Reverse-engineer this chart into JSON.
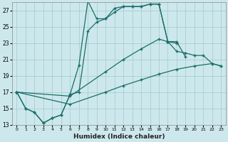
{
  "xlabel": "Humidex (Indice chaleur)",
  "xlim": [
    -0.5,
    23.5
  ],
  "ylim": [
    13,
    28
  ],
  "yticks": [
    13,
    15,
    17,
    19,
    21,
    23,
    25,
    27
  ],
  "xticks": [
    0,
    1,
    2,
    3,
    4,
    5,
    6,
    7,
    8,
    9,
    10,
    11,
    12,
    13,
    14,
    15,
    16,
    17,
    18,
    19,
    20,
    21,
    22,
    23
  ],
  "bg_color": "#cde8ec",
  "grid_color": "#a8cdd2",
  "line_color": "#1a6e6a",
  "lines": [
    {
      "x": [
        0,
        1,
        2,
        3,
        4,
        5,
        6,
        7,
        8,
        9,
        10,
        11,
        12,
        13,
        14,
        15,
        16,
        17,
        18,
        19,
        20,
        21,
        22,
        23
      ],
      "y": [
        17,
        15,
        14.5,
        13.2,
        13.8,
        14.2,
        16.7,
        20.3,
        28.2,
        26.0,
        26.0,
        27.3,
        27.5,
        27.5,
        27.5,
        27.8,
        27.8,
        23.2,
        23.2,
        21.3,
        null,
        null,
        null,
        null
      ]
    },
    {
      "x": [
        0,
        1,
        2,
        3,
        4,
        5,
        6,
        7,
        8,
        9,
        10,
        11,
        12,
        13,
        14,
        15,
        16,
        17,
        18,
        19,
        20,
        21,
        22,
        23
      ],
      "y": [
        17,
        15,
        14.5,
        13.2,
        13.8,
        14.2,
        16.7,
        17.0,
        24.5,
        25.6,
        26.0,
        26.8,
        27.5,
        27.5,
        27.5,
        27.8,
        27.8,
        23.2,
        23.0,
        null,
        null,
        null,
        null,
        null
      ]
    },
    {
      "x": [
        0,
        6,
        10,
        12,
        14,
        16,
        17,
        18,
        19,
        20,
        21,
        22,
        23
      ],
      "y": [
        17,
        16.5,
        19.5,
        21.0,
        22.3,
        23.5,
        23.2,
        22.0,
        21.8,
        21.5,
        21.5,
        20.5,
        20.2
      ]
    },
    {
      "x": [
        0,
        6,
        10,
        12,
        14,
        16,
        18,
        20,
        22,
        23
      ],
      "y": [
        17,
        15.5,
        17.0,
        17.8,
        18.5,
        19.2,
        19.8,
        20.2,
        20.5,
        20.2
      ]
    }
  ]
}
